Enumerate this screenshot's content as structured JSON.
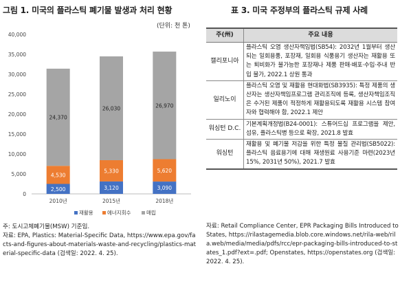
{
  "left": {
    "title": "그림 1. 미국의 플라스틱 폐기물 발생과 처리 현황",
    "unit": "(단위: 천 톤)",
    "source_note": "주: 도시고체폐기물(MSW) 기준임.",
    "source_text": "자료: EPA, Plastics: Material-Specific Data, https://www.epa.gov/facts-and-figures-about-materials-waste-and-recycling/plastics-material-specific-data (검색일: 2022. 4. 25)."
  },
  "chart_data": {
    "type": "bar",
    "stacked": true,
    "categories": [
      "2010년",
      "2015년",
      "2018년"
    ],
    "series": [
      {
        "name": "재활용",
        "values": [
          2500,
          3120,
          3090
        ],
        "color": "#4472c4"
      },
      {
        "name": "에너지회수",
        "values": [
          4530,
          5330,
          5620
        ],
        "color": "#ed7d31"
      },
      {
        "name": "매립",
        "values": [
          24370,
          26030,
          26970
        ],
        "color": "#a5a5a5"
      }
    ],
    "value_labels": [
      [
        "2,500",
        "3,120",
        "3,090"
      ],
      [
        "4,530",
        "5,330",
        "5,620"
      ],
      [
        "24,370",
        "26,030",
        "26,970"
      ]
    ],
    "yticks": [
      "0",
      "5,000",
      "10,000",
      "15,000",
      "20,000",
      "25,000",
      "30,000",
      "35,000",
      "40,000"
    ],
    "ylim": [
      0,
      40000
    ],
    "grid": false,
    "legend_position": "bottom"
  },
  "right": {
    "title": "표 3. 미국 주정부의 플라스틱 규제 사례",
    "header_state": "주(州)",
    "header_content": "주요 내용",
    "rows": [
      {
        "state": "캘리포니아",
        "content": "플라스틱 오염 생산자책임법(SB54): 2032년 1월부터 생산되는 일회용품, 포장재, 일회용 식품용기 생산자는 재활용 또는 퇴비화가 불가능한 포장재나 제품 판매·배포·수입·주내 반입 불가, 2022.1 상원 통과"
      },
      {
        "state": "일리노이",
        "content": "플라스틱 오염 및 재활용 현대화법(SB3935): 특정 제품의 생산자는 생산자책임프로그램 관리조직에 등록, 생산자책임조직은 수거된 제품이 적정하게 재활용되도록 재활용 시스템 참여자와 협력해야 함, 2022.1 제안"
      },
      {
        "state": "워싱턴 D.C.",
        "content": "기본계획개정법(B24-0001): 스튜어드십 프로그램을 제안, 섬유, 플라스틱병 등으로 확장, 2021.8 발효"
      },
      {
        "state": "워싱턴",
        "content": "재활용 및 폐기물 저감을 위한 특정 물질 관리법(SB5022): 플라스틱 음료용기에 대해 재생원료 사용기준 마련(2023년 15%, 2031년 50%), 2021.7 발효"
      }
    ],
    "source_text": "자료: Retail Compliance Center, EPR Packaging Bills Introduced to States, https://rilastagemedia.blob.core.windows.net/rila-web/rila.web/media/media/pdfs/rcc/epr-packaging-bills-introduced-to-states_1.pdf?ext=.pdf; Openstates, https://openstates.org (검색일: 2022. 4. 25)."
  }
}
